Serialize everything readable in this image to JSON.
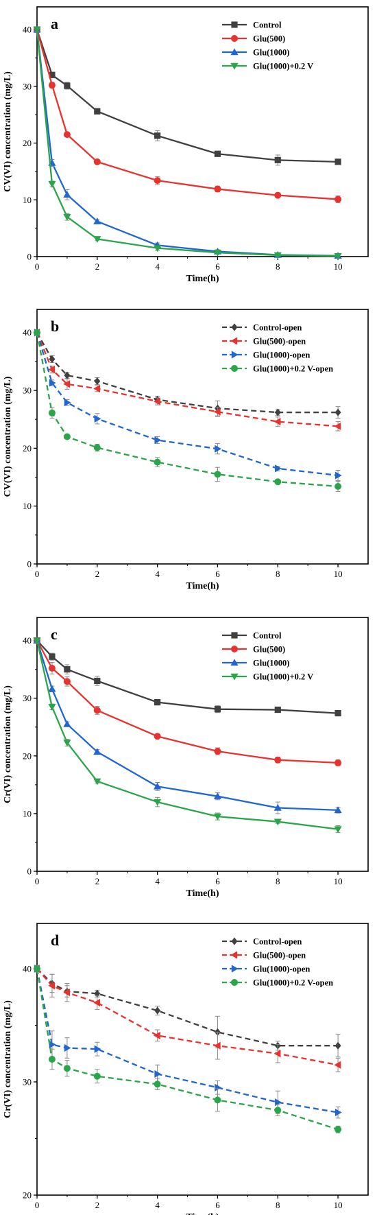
{
  "chart_data": [
    {
      "type": "line",
      "panel": "a",
      "xlabel": "Time(h)",
      "ylabel": "CV(VI) concentration (mg/L)",
      "xlim": [
        0,
        11
      ],
      "ylim": [
        0,
        44
      ],
      "xticks": [
        0,
        2,
        4,
        6,
        8,
        10
      ],
      "yticks": [
        0,
        10,
        20,
        30,
        40
      ],
      "grid": false,
      "legend_position": "top-right",
      "x": [
        0,
        0.5,
        1,
        2,
        4,
        6,
        8,
        10
      ],
      "series": [
        {
          "name": "Control",
          "color": "#404040",
          "marker": "square",
          "dashed": false,
          "values": [
            40,
            32,
            30.1,
            25.6,
            21.3,
            18.1,
            17,
            16.7
          ],
          "errors": [
            0.4,
            0.5,
            0.6,
            0.4,
            0.9,
            0.4,
            0.9,
            0.4
          ]
        },
        {
          "name": "Glu(500)",
          "color": "#e8322e",
          "marker": "circle",
          "dashed": false,
          "values": [
            40,
            30.2,
            21.5,
            16.7,
            13.4,
            11.9,
            10.8,
            10.1
          ],
          "errors": [
            0.4,
            0.5,
            0.4,
            0.3,
            0.7,
            0.5,
            0.4,
            0.6
          ]
        },
        {
          "name": "Glu(1000)",
          "color": "#1f66d1",
          "marker": "triangle-up",
          "dashed": false,
          "values": [
            40,
            16.5,
            10.9,
            6.2,
            2,
            0.9,
            0.3,
            0.15
          ],
          "errors": [
            0.4,
            0.6,
            0.9,
            0.3,
            0.4,
            0.3,
            0.2,
            0.2
          ]
        },
        {
          "name": "Glu(1000)+0.2 V",
          "color": "#2aa54a",
          "marker": "triangle-down",
          "dashed": false,
          "values": [
            40,
            12.8,
            7,
            3.1,
            1.5,
            0.7,
            0.25,
            0.1
          ],
          "errors": [
            0.4,
            0.5,
            0.6,
            0.3,
            0.4,
            0.2,
            0.2,
            0.1
          ]
        }
      ]
    },
    {
      "type": "line",
      "panel": "b",
      "xlabel": "Time(h)",
      "ylabel": "CV(VI) concentration (mg/L)",
      "xlim": [
        0,
        11
      ],
      "ylim": [
        0,
        44
      ],
      "xticks": [
        0,
        2,
        4,
        6,
        8,
        10
      ],
      "yticks": [
        0,
        10,
        20,
        30,
        40
      ],
      "grid": false,
      "legend_position": "top-right",
      "x": [
        0,
        0.5,
        1,
        2,
        4,
        6,
        8,
        10
      ],
      "series": [
        {
          "name": "Control-open",
          "color": "#404040",
          "marker": "diamond",
          "dashed": true,
          "values": [
            40,
            35.4,
            32.6,
            31.6,
            28.4,
            26.9,
            26.2,
            26.2
          ],
          "errors": [
            0.4,
            0.6,
            0.5,
            0.6,
            0.6,
            1.3,
            0.5,
            1
          ]
        },
        {
          "name": "Glu(500)-open",
          "color": "#e8322e",
          "marker": "triangle-left",
          "dashed": true,
          "values": [
            40,
            33.6,
            31.1,
            30.3,
            28.1,
            26.3,
            24.6,
            23.8
          ],
          "errors": [
            0.4,
            0.6,
            0.9,
            0.5,
            0.6,
            0.8,
            0.8,
            0.8
          ]
        },
        {
          "name": "Glu(1000)-open",
          "color": "#1f66d1",
          "marker": "triangle-right",
          "dashed": true,
          "values": [
            40,
            31.3,
            27.9,
            25.1,
            21.4,
            19.9,
            16.5,
            15.3
          ],
          "errors": [
            0.4,
            0.5,
            0.5,
            0.9,
            0.6,
            0.9,
            0.4,
            0.9
          ]
        },
        {
          "name": "Glu(1000)+0.2 V-open",
          "color": "#2aa54a",
          "marker": "circle",
          "dashed": true,
          "values": [
            40,
            26.1,
            22,
            20.1,
            17.6,
            15.5,
            14.2,
            13.4
          ],
          "errors": [
            0.4,
            0.9,
            0.4,
            0.6,
            0.8,
            1.2,
            0.4,
            0.9
          ]
        }
      ]
    },
    {
      "type": "line",
      "panel": "c",
      "xlabel": "Time(h)",
      "ylabel": "Cr(VI) concentration (mg/L)",
      "xlim": [
        0,
        11
      ],
      "ylim": [
        0,
        44
      ],
      "xticks": [
        0,
        2,
        4,
        6,
        8,
        10
      ],
      "yticks": [
        0,
        10,
        20,
        30,
        40
      ],
      "grid": false,
      "legend_position": "top-right",
      "x": [
        0,
        0.5,
        1,
        2,
        4,
        6,
        8,
        10
      ],
      "series": [
        {
          "name": "Control",
          "color": "#404040",
          "marker": "square",
          "dashed": false,
          "values": [
            40,
            37.2,
            35,
            33,
            29.3,
            28.1,
            28,
            27.4
          ],
          "errors": [
            0.4,
            0.6,
            0.8,
            0.8,
            0.3,
            0.6,
            0.4,
            0.3
          ]
        },
        {
          "name": "Glu(500)",
          "color": "#e8322e",
          "marker": "circle",
          "dashed": false,
          "values": [
            40,
            35.2,
            32.9,
            27.9,
            23.4,
            20.8,
            19.3,
            18.8
          ],
          "errors": [
            0.4,
            1,
            0.8,
            0.7,
            0.4,
            0.6,
            0.5,
            0.5
          ]
        },
        {
          "name": "Glu(1000)",
          "color": "#1f66d1",
          "marker": "triangle-up",
          "dashed": false,
          "values": [
            40,
            31.6,
            25.5,
            20.7,
            14.7,
            13,
            11,
            10.6
          ],
          "errors": [
            0.4,
            0.5,
            0.4,
            0.4,
            0.7,
            0.6,
            1,
            0.5
          ]
        },
        {
          "name": "Glu(1000)+0.2 V",
          "color": "#2aa54a",
          "marker": "triangle-down",
          "dashed": false,
          "values": [
            40,
            28.5,
            22.3,
            15.6,
            12,
            9.5,
            8.6,
            7.3
          ],
          "errors": [
            0.4,
            0.5,
            0.6,
            0.3,
            0.8,
            0.6,
            0.3,
            0.6
          ]
        }
      ]
    },
    {
      "type": "line",
      "panel": "d",
      "xlabel": "Time(h)",
      "ylabel": "Cr(VI) concentration (mg/L)",
      "xlim": [
        0,
        11
      ],
      "ylim": [
        20,
        44
      ],
      "xticks": [
        0,
        2,
        4,
        6,
        8,
        10
      ],
      "yticks": [
        20,
        30,
        40
      ],
      "grid": false,
      "legend_position": "top-right",
      "x": [
        0,
        0.5,
        1,
        2,
        4,
        6,
        8,
        10
      ],
      "series": [
        {
          "name": "Control-open",
          "color": "#404040",
          "marker": "diamond",
          "dashed": true,
          "values": [
            40,
            38.7,
            38,
            37.8,
            36.3,
            34.4,
            33.2,
            33.2
          ],
          "errors": [
            0.3,
            0.8,
            0.5,
            0.3,
            0.4,
            1.4,
            0.4,
            1
          ]
        },
        {
          "name": "Glu(500)-open",
          "color": "#e8322e",
          "marker": "triangle-left",
          "dashed": true,
          "values": [
            40,
            38.5,
            37.9,
            37,
            34.1,
            33.2,
            32.5,
            31.5
          ],
          "errors": [
            0.3,
            1,
            0.8,
            0.6,
            0.5,
            1.2,
            0.8,
            0.6
          ]
        },
        {
          "name": "Glu(1000)-open",
          "color": "#1f66d1",
          "marker": "triangle-right",
          "dashed": true,
          "values": [
            40,
            33.3,
            33,
            32.9,
            30.7,
            29.5,
            28.2,
            27.3
          ],
          "errors": [
            0.3,
            1.2,
            0.9,
            0.6,
            0.8,
            0.6,
            1,
            0.5
          ]
        },
        {
          "name": "Glu(1000)+0.2 V-open",
          "color": "#2aa54a",
          "marker": "circle",
          "dashed": true,
          "values": [
            40,
            32,
            31.2,
            30.5,
            29.8,
            28.4,
            27.5,
            25.8
          ],
          "errors": [
            0.3,
            0.9,
            0.7,
            0.6,
            0.5,
            1,
            0.5,
            0.3
          ]
        }
      ]
    }
  ]
}
